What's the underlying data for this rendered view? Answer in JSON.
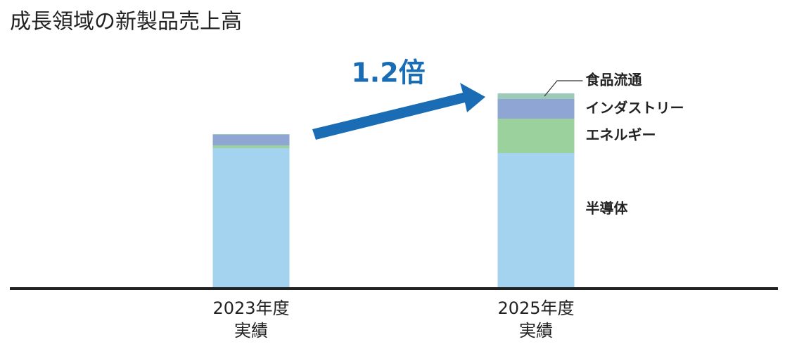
{
  "chart_data": {
    "type": "stacked-bar",
    "title": "成長領域の新製品売上高",
    "annotation": "1.2倍",
    "categories": [
      [
        "2023年度",
        "実績"
      ],
      [
        "2025年度",
        "実績"
      ]
    ],
    "series": [
      {
        "name": "半導体",
        "color": "#a3d3ef",
        "values": [
          199,
          192
        ]
      },
      {
        "name": "エネルギー",
        "color": "#9ad19d",
        "values": [
          4,
          49
        ]
      },
      {
        "name": "インダストリー",
        "color": "#8fa6d5",
        "values": [
          15,
          28
        ]
      },
      {
        "name": "食品流通",
        "color": "#9dc9b9",
        "values": [
          1,
          8
        ]
      }
    ],
    "ylim": [
      0,
      280
    ]
  }
}
